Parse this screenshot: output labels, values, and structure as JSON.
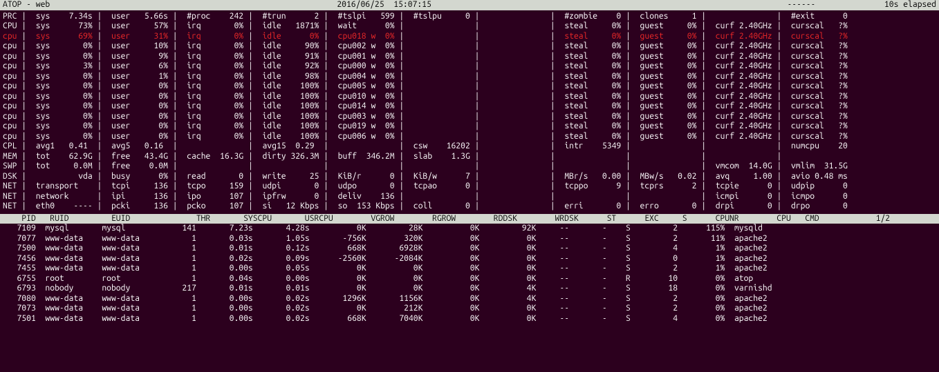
{
  "header": {
    "left": "ATOP - web",
    "center": "2016/06/25  15:07:15",
    "dash": "------",
    "right": "10s elapsed"
  },
  "sys_rows": [
    {
      "red": false,
      "cells": [
        "PRC",
        "sys    7.34s",
        "user   5.66s",
        "#proc    242",
        "#trun      2",
        "#tslpi   599",
        "#tslpu     0",
        "            ",
        "#zombie    0",
        "clones     1",
        "            ",
        "#exit      0"
      ]
    },
    {
      "red": false,
      "cells": [
        "CPU",
        "sys      73%",
        "user     57%",
        "irq       0%",
        "idle   1871%",
        "wait      0%",
        "            ",
        "            ",
        "steal     0%",
        "guest     0%",
        "curf 2.40GHz",
        "curscal   ?%"
      ]
    },
    {
      "red": true,
      "cells": [
        "cpu",
        "sys      69%",
        "user     31%",
        "irq       0%",
        "idle      0%",
        "cpu018 w  0%",
        "            ",
        "            ",
        "steal     0%",
        "guest     0%",
        "curf 2.40GHz",
        "curscal   ?%"
      ]
    },
    {
      "red": false,
      "cells": [
        "cpu",
        "sys       0%",
        "user     10%",
        "irq       0%",
        "idle     90%",
        "cpu002 w  0%",
        "            ",
        "            ",
        "steal     0%",
        "guest     0%",
        "curf 2.40GHz",
        "curscal   ?%"
      ]
    },
    {
      "red": false,
      "cells": [
        "cpu",
        "sys       0%",
        "user      9%",
        "irq       0%",
        "idle     91%",
        "cpu001 w  0%",
        "            ",
        "            ",
        "steal     0%",
        "guest     0%",
        "curf 2.40GHz",
        "curscal   ?%"
      ]
    },
    {
      "red": false,
      "cells": [
        "cpu",
        "sys       3%",
        "user      6%",
        "irq       0%",
        "idle     92%",
        "cpu000 w  0%",
        "            ",
        "            ",
        "steal     0%",
        "guest     0%",
        "curf 2.40GHz",
        "curscal   ?%"
      ]
    },
    {
      "red": false,
      "cells": [
        "cpu",
        "sys       0%",
        "user      1%",
        "irq       0%",
        "idle     98%",
        "cpu004 w  0%",
        "            ",
        "            ",
        "steal     0%",
        "guest     0%",
        "curf 2.40GHz",
        "curscal   ?%"
      ]
    },
    {
      "red": false,
      "cells": [
        "cpu",
        "sys       0%",
        "user      0%",
        "irq       0%",
        "idle    100%",
        "cpu005 w  0%",
        "            ",
        "            ",
        "steal     0%",
        "guest     0%",
        "curf 2.40GHz",
        "curscal   ?%"
      ]
    },
    {
      "red": false,
      "cells": [
        "cpu",
        "sys       0%",
        "user      0%",
        "irq       0%",
        "idle    100%",
        "cpu010 w  0%",
        "            ",
        "            ",
        "steal     0%",
        "guest     0%",
        "curf 2.40GHz",
        "curscal   ?%"
      ]
    },
    {
      "red": false,
      "cells": [
        "cpu",
        "sys       0%",
        "user      0%",
        "irq       0%",
        "idle    100%",
        "cpu014 w  0%",
        "            ",
        "            ",
        "steal     0%",
        "guest     0%",
        "curf 2.40GHz",
        "curscal   ?%"
      ]
    },
    {
      "red": false,
      "cells": [
        "cpu",
        "sys       0%",
        "user      0%",
        "irq       0%",
        "idle    100%",
        "cpu003 w  0%",
        "            ",
        "            ",
        "steal     0%",
        "guest     0%",
        "curf 2.40GHz",
        "curscal   ?%"
      ]
    },
    {
      "red": false,
      "cells": [
        "cpu",
        "sys       0%",
        "user      0%",
        "irq       0%",
        "idle    100%",
        "cpu019 w  0%",
        "            ",
        "            ",
        "steal     0%",
        "guest     0%",
        "curf 2.40GHz",
        "curscal   ?%"
      ]
    },
    {
      "red": false,
      "cells": [
        "cpu",
        "sys       0%",
        "user      0%",
        "irq       0%",
        "idle    100%",
        "cpu006 w  0%",
        "            ",
        "            ",
        "steal     0%",
        "guest     0%",
        "curf 2.40GHz",
        "curscal   ?%"
      ]
    },
    {
      "red": false,
      "cells": [
        "CPL",
        "avg1   0.41 ",
        "avg5   0.16 ",
        "            ",
        "avg15  0.29 ",
        "            ",
        "csw    16202",
        "            ",
        "intr    5349",
        "            ",
        "            ",
        "numcpu    20"
      ]
    },
    {
      "red": false,
      "cells": [
        "MEM",
        "tot    62.9G",
        "free   43.4G",
        "cache  16.3G",
        "dirty 326.3M",
        "buff  346.2M",
        "slab    1.3G",
        "            ",
        "            ",
        "            ",
        "            ",
        "            "
      ]
    },
    {
      "red": false,
      "cells": [
        "SWP",
        "tot     0.0M",
        "free    0.0M",
        "            ",
        "            ",
        "            ",
        "            ",
        "            ",
        "            ",
        "            ",
        "vmcom  14.0G",
        "vmlim  31.5G"
      ]
    },
    {
      "red": false,
      "cells": [
        "DSK",
        "         vda",
        "busy      0%",
        "read       0",
        "write     25",
        "KiB/r      0",
        "KiB/w      7",
        "            ",
        "MBr/s   0.00",
        "MBw/s   0.02",
        "avq     1.00",
        "avio 0.48 ms"
      ]
    },
    {
      "red": false,
      "cells": [
        "NET",
        "transport   ",
        "tcpi     136",
        "tcpo     159",
        "udpi       0",
        "udpo       0",
        "tcpao      0",
        "            ",
        "tcppo      9",
        "tcprs      2",
        "tcpie      0",
        "udpip      0"
      ]
    },
    {
      "red": false,
      "cells": [
        "NET",
        "network     ",
        "ipi      136",
        "ipo      107",
        "ipfrw      0",
        "deliv    136",
        "            ",
        "            ",
        "            ",
        "            ",
        "icmpi      0",
        "icmpo      0"
      ]
    },
    {
      "red": false,
      "cells": [
        "NET",
        "eth0    ----",
        "pcki     136",
        "pcko     107",
        "si   12 Kbps",
        "so  153 Kbps",
        "coll       0",
        "            ",
        "erri       0",
        "erro       0",
        "drpi       0",
        "drpo       0"
      ]
    }
  ],
  "proc_header": {
    "cols": [
      "PID",
      "RUID",
      "EUID",
      "THR",
      "SYSCPU",
      "USRCPU",
      "VGROW",
      "RGROW",
      "RDDSK",
      "WRDSK",
      "ST",
      "EXC",
      "S",
      "CPUNR",
      "CPU",
      "CMD"
    ],
    "page": "1/2"
  },
  "procs": [
    [
      "7109",
      "mysql",
      "mysql",
      "141",
      "7.23s",
      "4.28s",
      "0K",
      "28K",
      "0K",
      "92K",
      "--",
      "-",
      "S",
      "2",
      "115%",
      "mysqld"
    ],
    [
      "7077",
      "www-data",
      "www-data",
      "1",
      "0.03s",
      "1.05s",
      "-756K",
      "320K",
      "0K",
      "0K",
      "--",
      "-",
      "S",
      "2",
      "11%",
      "apache2"
    ],
    [
      "7500",
      "www-data",
      "www-data",
      "1",
      "0.01s",
      "0.12s",
      "668K",
      "6928K",
      "0K",
      "0K",
      "--",
      "-",
      "S",
      "4",
      "1%",
      "apache2"
    ],
    [
      "7456",
      "www-data",
      "www-data",
      "1",
      "0.02s",
      "0.09s",
      "-2560K",
      "-2084K",
      "0K",
      "0K",
      "--",
      "-",
      "S",
      "0",
      "1%",
      "apache2"
    ],
    [
      "7455",
      "www-data",
      "www-data",
      "1",
      "0.00s",
      "0.05s",
      "0K",
      "0K",
      "0K",
      "0K",
      "--",
      "-",
      "S",
      "2",
      "1%",
      "apache2"
    ],
    [
      "6755",
      "root",
      "root",
      "1",
      "0.04s",
      "0.00s",
      "0K",
      "0K",
      "0K",
      "0K",
      "--",
      "-",
      "R",
      "10",
      "0%",
      "atop"
    ],
    [
      "6793",
      "nobody",
      "nobody",
      "217",
      "0.01s",
      "0.01s",
      "0K",
      "0K",
      "0K",
      "4K",
      "--",
      "-",
      "S",
      "18",
      "0%",
      "varnishd"
    ],
    [
      "7080",
      "www-data",
      "www-data",
      "1",
      "0.00s",
      "0.02s",
      "1296K",
      "1156K",
      "0K",
      "4K",
      "--",
      "-",
      "S",
      "2",
      "0%",
      "apache2"
    ],
    [
      "7073",
      "www-data",
      "www-data",
      "1",
      "0.00s",
      "0.02s",
      "0K",
      "212K",
      "0K",
      "0K",
      "--",
      "-",
      "S",
      "2",
      "0%",
      "apache2"
    ],
    [
      "7501",
      "www-data",
      "www-data",
      "1",
      "0.00s",
      "0.02s",
      "668K",
      "7040K",
      "0K",
      "0K",
      "--",
      "-",
      "S",
      "4",
      "0%",
      "apache2"
    ]
  ],
  "col_widths": {
    "sys_label": 4,
    "sys_cell": 12,
    "proc": [
      7,
      12,
      12,
      10,
      12,
      12,
      12,
      12,
      12,
      12,
      7,
      8,
      5,
      10,
      10,
      12
    ]
  }
}
